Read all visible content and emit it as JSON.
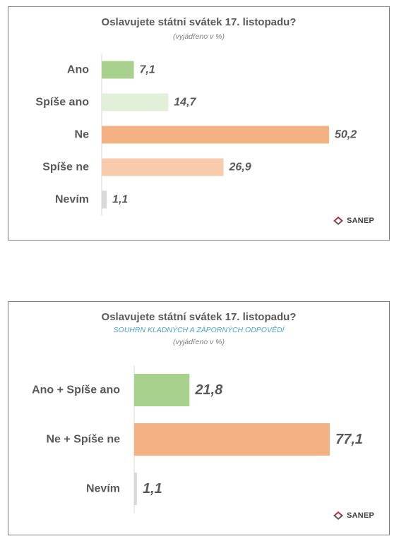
{
  "chart_data": [
    {
      "type": "bar",
      "orientation": "horizontal",
      "title": "Oslavujete státní svátek 17. listopadu?",
      "subtitle": "(vyjádřeno v %)",
      "categories": [
        "Ano",
        "Spíše ano",
        "Ne",
        "Spíše ne",
        "Nevím"
      ],
      "values": [
        7.1,
        14.7,
        50.2,
        26.9,
        1.1
      ],
      "value_labels": [
        "7,1",
        "14,7",
        "50,2",
        "26,9",
        "1,1"
      ],
      "colors": [
        "#a9d18e",
        "#e2f0d9",
        "#f4b183",
        "#f8cbad",
        "#d9d9d9"
      ],
      "xlim": [
        0,
        50.2
      ],
      "grid": false
    },
    {
      "type": "bar",
      "orientation": "horizontal",
      "title": "Oslavujete státní svátek 17. listopadu?",
      "subtitle": "SOUHRN KLADNÝCH A ZÁPORNÝCH ODPOVĚDÍ",
      "subtitle2": "(vyjádřeno v %)",
      "categories": [
        "Ano + Spíše ano",
        "Ne + Spíše ne",
        "Nevím"
      ],
      "values": [
        21.8,
        77.1,
        1.1
      ],
      "value_labels": [
        "21,8",
        "77,1",
        "1,1"
      ],
      "colors": [
        "#a9d18e",
        "#f4b183",
        "#d9d9d9"
      ],
      "xlim": [
        0,
        77.1
      ],
      "grid": false
    }
  ],
  "logo": {
    "text": "SANEP",
    "colors": [
      "#c0272d",
      "#595959"
    ]
  }
}
